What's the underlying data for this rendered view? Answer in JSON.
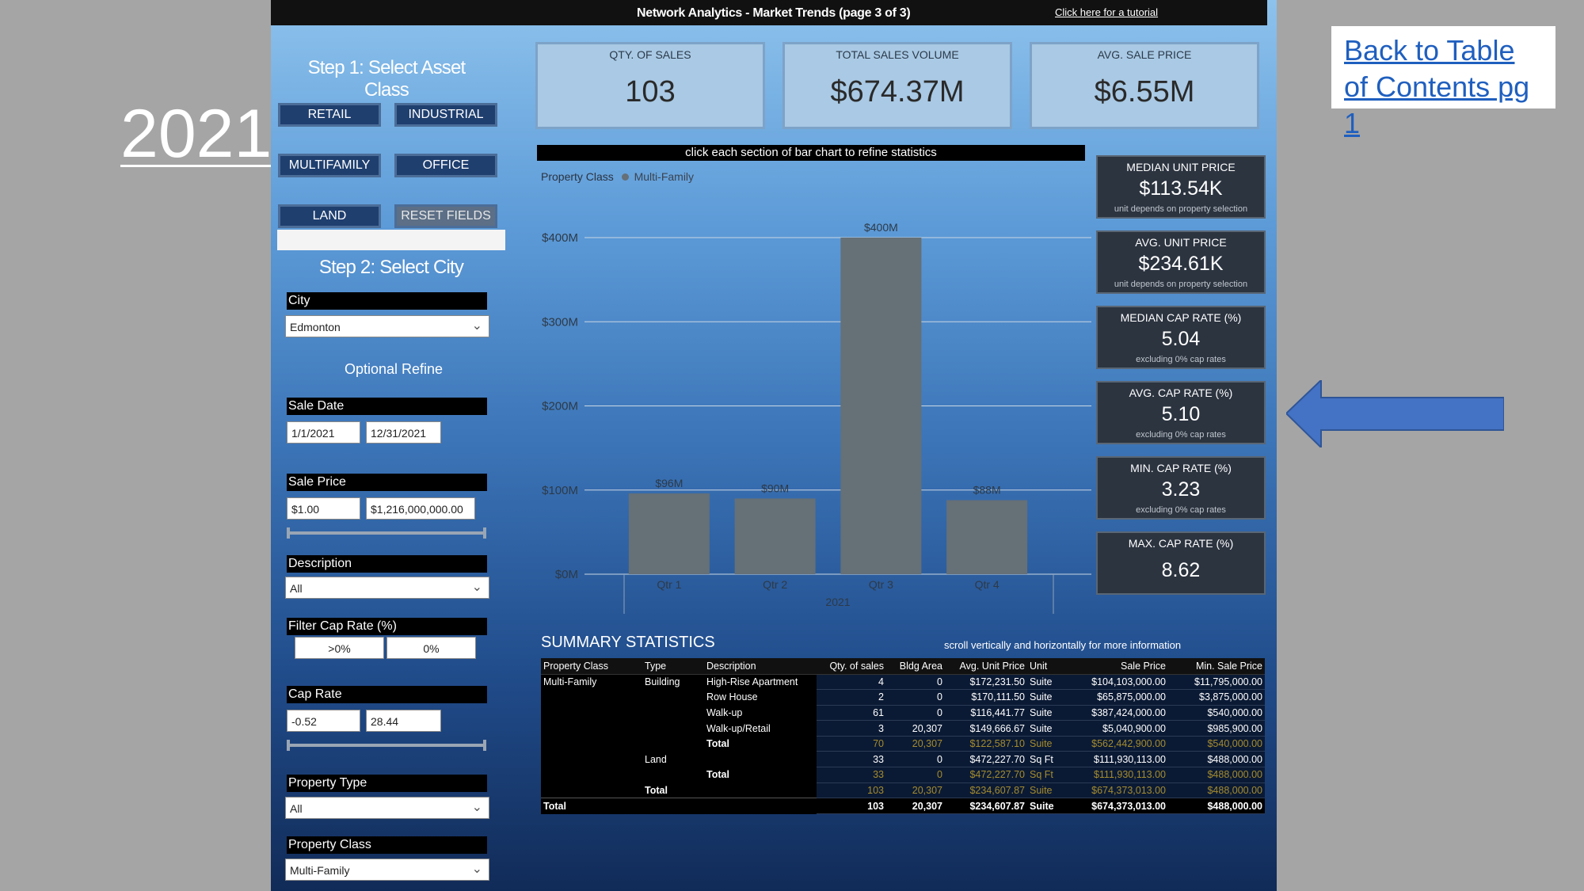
{
  "year": "2021",
  "toc_link": "Back to Table of Contents pg 1",
  "header": {
    "title": "Network Analytics - Market Trends (page 3 of 3)",
    "tutorial": "Click here for a tutorial"
  },
  "step1": {
    "title": "Step 1: Select Asset Class",
    "buttons": {
      "retail": "RETAIL",
      "industrial": "INDUSTRIAL",
      "multifamily": "MULTIFAMILY",
      "office": "OFFICE",
      "land": "LAND",
      "reset": "RESET FIELDS"
    }
  },
  "step2": {
    "title": "Step 2: Select City",
    "city_label": "City",
    "city_value": "Edmonton"
  },
  "optional_refine": "Optional Refine",
  "filters": {
    "sale_date": {
      "label": "Sale Date",
      "from": "1/1/2021",
      "to": "12/31/2021"
    },
    "sale_price": {
      "label": "Sale Price",
      "min": "$1.00",
      "max": "$1,216,000,000.00"
    },
    "description": {
      "label": "Description",
      "value": "All"
    },
    "filter_cap": {
      "label": "Filter Cap Rate (%)",
      "opt1": ">0%",
      "opt2": "0%"
    },
    "cap_rate": {
      "label": "Cap Rate",
      "min": "-0.52",
      "max": "28.44"
    },
    "property_type": {
      "label": "Property Type",
      "value": "All"
    },
    "property_class": {
      "label": "Property Class",
      "value": "Multi-Family"
    }
  },
  "kpis": {
    "qty": {
      "label": "QTY. OF SALES",
      "value": "103"
    },
    "volume": {
      "label": "TOTAL SALES VOLUME",
      "value": "$674.37M"
    },
    "avg_price": {
      "label": "AVG. SALE PRICE",
      "value": "$6.55M"
    }
  },
  "refine_note": "click each section of bar chart to refine statistics",
  "legend": {
    "title": "Property Class",
    "series": "Multi-Family"
  },
  "cards": {
    "median_unit": {
      "label": "MEDIAN UNIT PRICE",
      "value": "$113.54K",
      "note": "unit depends on property selection"
    },
    "avg_unit": {
      "label": "AVG. UNIT PRICE",
      "value": "$234.61K",
      "note": "unit depends on property selection"
    },
    "median_cap": {
      "label": "MEDIAN CAP RATE (%)",
      "value": "5.04",
      "note": "excluding 0% cap rates"
    },
    "avg_cap": {
      "label": "AVG. CAP RATE (%)",
      "value": "5.10",
      "note": "excluding 0% cap rates"
    },
    "min_cap": {
      "label": "MIN. CAP RATE (%)",
      "value": "3.23",
      "note": "excluding 0% cap rates"
    },
    "max_cap": {
      "label": "MAX. CAP RATE (%)",
      "value": "8.62"
    }
  },
  "chart_data": {
    "type": "bar",
    "categories": [
      "Qtr 1",
      "Qtr 2",
      "Qtr 3",
      "Qtr 4"
    ],
    "group_label": "2021",
    "series": [
      {
        "name": "Multi-Family",
        "values": [
          96,
          90,
          400,
          88
        ]
      }
    ],
    "data_labels": [
      "$96M",
      "$90M",
      "$400M",
      "$88M"
    ],
    "yticks": [
      "$0M",
      "$100M",
      "$200M",
      "$300M",
      "$400M"
    ],
    "ylim": [
      0,
      400
    ],
    "color": "#657077",
    "grid": true
  },
  "summary": {
    "title": "SUMMARY STATISTICS",
    "note": "scroll vertically and horizontally for more information",
    "columns": [
      "Property Class",
      "Type",
      "Description",
      "Qty. of sales",
      "Bldg Area",
      "Avg. Unit Price",
      "Unit",
      "Sale Price",
      "Min. Sale Price"
    ],
    "rows": [
      {
        "kind": "row",
        "cells": [
          "Multi-Family",
          "Building",
          "High-Rise Apartment",
          "4",
          "0",
          "$172,231.50",
          "Suite",
          "$104,103,000.00",
          "$11,795,000.00"
        ]
      },
      {
        "kind": "row",
        "cells": [
          "",
          "",
          "Row House",
          "2",
          "0",
          "$170,111.50",
          "Suite",
          "$65,875,000.00",
          "$3,875,000.00"
        ]
      },
      {
        "kind": "row",
        "cells": [
          "",
          "",
          "Walk-up",
          "61",
          "0",
          "$116,441.77",
          "Suite",
          "$387,424,000.00",
          "$540,000.00"
        ]
      },
      {
        "kind": "row",
        "cells": [
          "",
          "",
          "Walk-up/Retail",
          "3",
          "20,307",
          "$149,666.67",
          "Suite",
          "$5,040,900.00",
          "$985,900.00"
        ]
      },
      {
        "kind": "sub",
        "cells": [
          "",
          "",
          "Total",
          "70",
          "20,307",
          "$122,587.10",
          "Suite",
          "$562,442,900.00",
          "$540,000.00"
        ]
      },
      {
        "kind": "row",
        "cells": [
          "",
          "Land",
          "",
          "33",
          "0",
          "$472,227.70",
          "Sq Ft",
          "$111,930,113.00",
          "$488,000.00"
        ]
      },
      {
        "kind": "sub",
        "cells": [
          "",
          "",
          "Total",
          "33",
          "0",
          "$472,227.70",
          "Sq Ft",
          "$111,930,113.00",
          "$488,000.00"
        ]
      },
      {
        "kind": "sub",
        "cells": [
          "",
          "Total",
          "",
          "103",
          "20,307",
          "$234,607.87",
          "Suite",
          "$674,373,013.00",
          "$488,000.00"
        ]
      },
      {
        "kind": "total",
        "cells": [
          "Total",
          "",
          "",
          "103",
          "20,307",
          "$234,607.87",
          "Suite",
          "$674,373,013.00",
          "$488,000.00"
        ]
      }
    ]
  },
  "colors": {
    "arrow": "#4472c4",
    "bar": "#657077",
    "subtotal_text": "#a58c2e"
  }
}
